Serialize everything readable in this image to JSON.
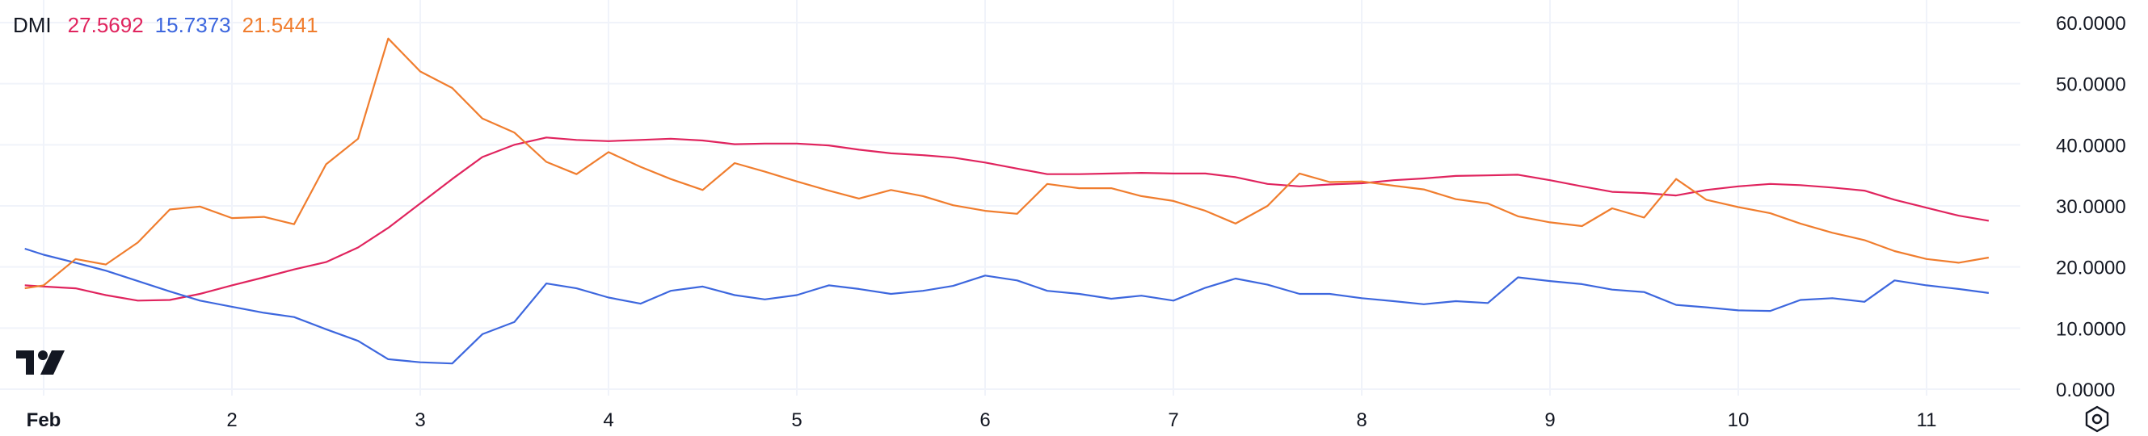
{
  "chart_data": {
    "type": "line",
    "indicator": "DMI",
    "current_values": [
      "27.5692",
      "15.7373",
      "21.5441"
    ],
    "ylim": [
      0,
      60
    ],
    "y_ticks": [
      "60.0000",
      "50.0000",
      "40.0000",
      "30.0000",
      "20.0000",
      "10.0000",
      "0.0000"
    ],
    "y_tick_values": [
      60,
      50,
      40,
      30,
      20,
      10,
      0
    ],
    "x_ticks": [
      {
        "label": "Feb",
        "day": 1,
        "bold": true
      },
      {
        "label": "2",
        "day": 2
      },
      {
        "label": "3",
        "day": 3
      },
      {
        "label": "4",
        "day": 4
      },
      {
        "label": "5",
        "day": 5
      },
      {
        "label": "6",
        "day": 6
      },
      {
        "label": "7",
        "day": 7
      },
      {
        "label": "8",
        "day": 8
      },
      {
        "label": "9",
        "day": 9
      },
      {
        "label": "10",
        "day": 10
      },
      {
        "label": "11",
        "day": 11
      }
    ],
    "grid": true,
    "legend_position": "top-left",
    "colors": {
      "series_1": "#e0245e",
      "series_2": "#3d67de",
      "series_3": "#f07d2e",
      "grid": "#f0f3fa",
      "text": "#131722"
    },
    "series": [
      {
        "color": "#e0245e",
        "x": [
          0.9,
          1.0,
          1.17,
          1.33,
          1.5,
          1.67,
          1.83,
          2.0,
          2.17,
          2.33,
          2.5,
          2.67,
          2.83,
          3.0,
          3.17,
          3.33,
          3.5,
          3.67,
          3.83,
          4.0,
          4.17,
          4.33,
          4.5,
          4.67,
          4.83,
          5.0,
          5.17,
          5.33,
          5.5,
          5.67,
          5.83,
          6.0,
          6.17,
          6.33,
          6.5,
          6.67,
          6.83,
          7.0,
          7.17,
          7.33,
          7.5,
          7.67,
          7.83,
          8.0,
          8.17,
          8.33,
          8.5,
          8.67,
          8.83,
          9.0,
          9.17,
          9.33,
          9.5,
          9.67,
          9.83,
          10.0,
          10.17,
          10.33,
          10.5,
          10.67,
          10.83,
          11.0,
          11.17,
          11.33
        ],
        "values": [
          17.0,
          16.8,
          16.5,
          15.4,
          14.5,
          14.6,
          15.6,
          17.0,
          18.3,
          19.6,
          20.8,
          23.2,
          26.4,
          30.4,
          34.4,
          38.0,
          40.0,
          41.2,
          40.8,
          40.6,
          40.8,
          41.0,
          40.7,
          40.1,
          40.2,
          40.2,
          39.9,
          39.2,
          38.6,
          38.3,
          37.9,
          37.1,
          36.1,
          35.2,
          35.2,
          35.3,
          35.4,
          35.3,
          35.3,
          34.7,
          33.6,
          33.2,
          33.5,
          33.7,
          34.2,
          34.5,
          34.9,
          35.0,
          35.1,
          34.2,
          33.2,
          32.3,
          32.1,
          31.7,
          32.6,
          33.2,
          33.6,
          33.4,
          33.0,
          32.5,
          31.0,
          29.7,
          28.4,
          27.5692
        ]
      },
      {
        "color": "#3d67de",
        "x": [
          0.9,
          1.0,
          1.17,
          1.33,
          1.5,
          1.67,
          1.83,
          2.0,
          2.17,
          2.33,
          2.5,
          2.67,
          2.83,
          3.0,
          3.17,
          3.33,
          3.5,
          3.67,
          3.83,
          4.0,
          4.17,
          4.33,
          4.5,
          4.67,
          4.83,
          5.0,
          5.17,
          5.33,
          5.5,
          5.67,
          5.83,
          6.0,
          6.17,
          6.33,
          6.5,
          6.67,
          6.83,
          7.0,
          7.17,
          7.33,
          7.5,
          7.67,
          7.83,
          8.0,
          8.17,
          8.33,
          8.5,
          8.67,
          8.83,
          9.0,
          9.17,
          9.33,
          9.5,
          9.67,
          9.83,
          10.0,
          10.17,
          10.33,
          10.5,
          10.67,
          10.83,
          11.0,
          11.17,
          11.33
        ],
        "values": [
          23.0,
          22.0,
          20.7,
          19.4,
          17.7,
          16.0,
          14.5,
          13.5,
          12.5,
          11.8,
          9.8,
          7.9,
          4.9,
          4.4,
          4.2,
          9.0,
          11.0,
          17.3,
          16.5,
          15.0,
          14.0,
          16.1,
          16.8,
          15.4,
          14.7,
          15.4,
          17.0,
          16.4,
          15.6,
          16.1,
          16.9,
          18.6,
          17.8,
          16.1,
          15.6,
          14.8,
          15.3,
          14.5,
          16.6,
          18.1,
          17.1,
          15.6,
          15.6,
          14.9,
          14.4,
          13.9,
          14.4,
          14.1,
          18.3,
          17.7,
          17.2,
          16.3,
          15.9,
          13.8,
          13.4,
          12.9,
          12.8,
          14.6,
          14.9,
          14.3,
          17.8,
          17.0,
          16.4,
          15.7373
        ]
      },
      {
        "color": "#f07d2e",
        "x": [
          0.9,
          1.0,
          1.17,
          1.33,
          1.5,
          1.67,
          1.83,
          2.0,
          2.17,
          2.33,
          2.5,
          2.67,
          2.83,
          3.0,
          3.17,
          3.33,
          3.5,
          3.67,
          3.83,
          4.0,
          4.17,
          4.33,
          4.5,
          4.67,
          4.83,
          5.0,
          5.17,
          5.33,
          5.5,
          5.67,
          5.83,
          6.0,
          6.17,
          6.33,
          6.5,
          6.67,
          6.83,
          7.0,
          7.17,
          7.33,
          7.5,
          7.67,
          7.83,
          8.0,
          8.17,
          8.33,
          8.5,
          8.67,
          8.83,
          9.0,
          9.17,
          9.33,
          9.5,
          9.67,
          9.83,
          10.0,
          10.17,
          10.33,
          10.5,
          10.67,
          10.83,
          11.0,
          11.17,
          11.33
        ],
        "values": [
          16.5,
          17.0,
          21.3,
          20.4,
          24.0,
          29.4,
          29.9,
          28.0,
          28.2,
          27.0,
          36.8,
          41.0,
          57.4,
          52.0,
          49.3,
          44.3,
          42.0,
          37.2,
          35.2,
          38.8,
          36.4,
          34.4,
          32.6,
          37.0,
          35.6,
          34.0,
          32.5,
          31.2,
          32.6,
          31.6,
          30.1,
          29.2,
          28.7,
          33.6,
          32.9,
          32.9,
          31.6,
          30.8,
          29.2,
          27.1,
          30.0,
          35.3,
          33.9,
          34.0,
          33.3,
          32.7,
          31.1,
          30.4,
          28.3,
          27.3,
          26.7,
          29.6,
          28.1,
          34.4,
          31.0,
          29.8,
          28.8,
          27.1,
          25.6,
          24.4,
          22.6,
          21.3,
          20.7,
          21.5441
        ]
      }
    ]
  },
  "ui": {
    "logo_icon": "tradingview-logo-icon",
    "settings_icon": "settings-gear-icon"
  }
}
